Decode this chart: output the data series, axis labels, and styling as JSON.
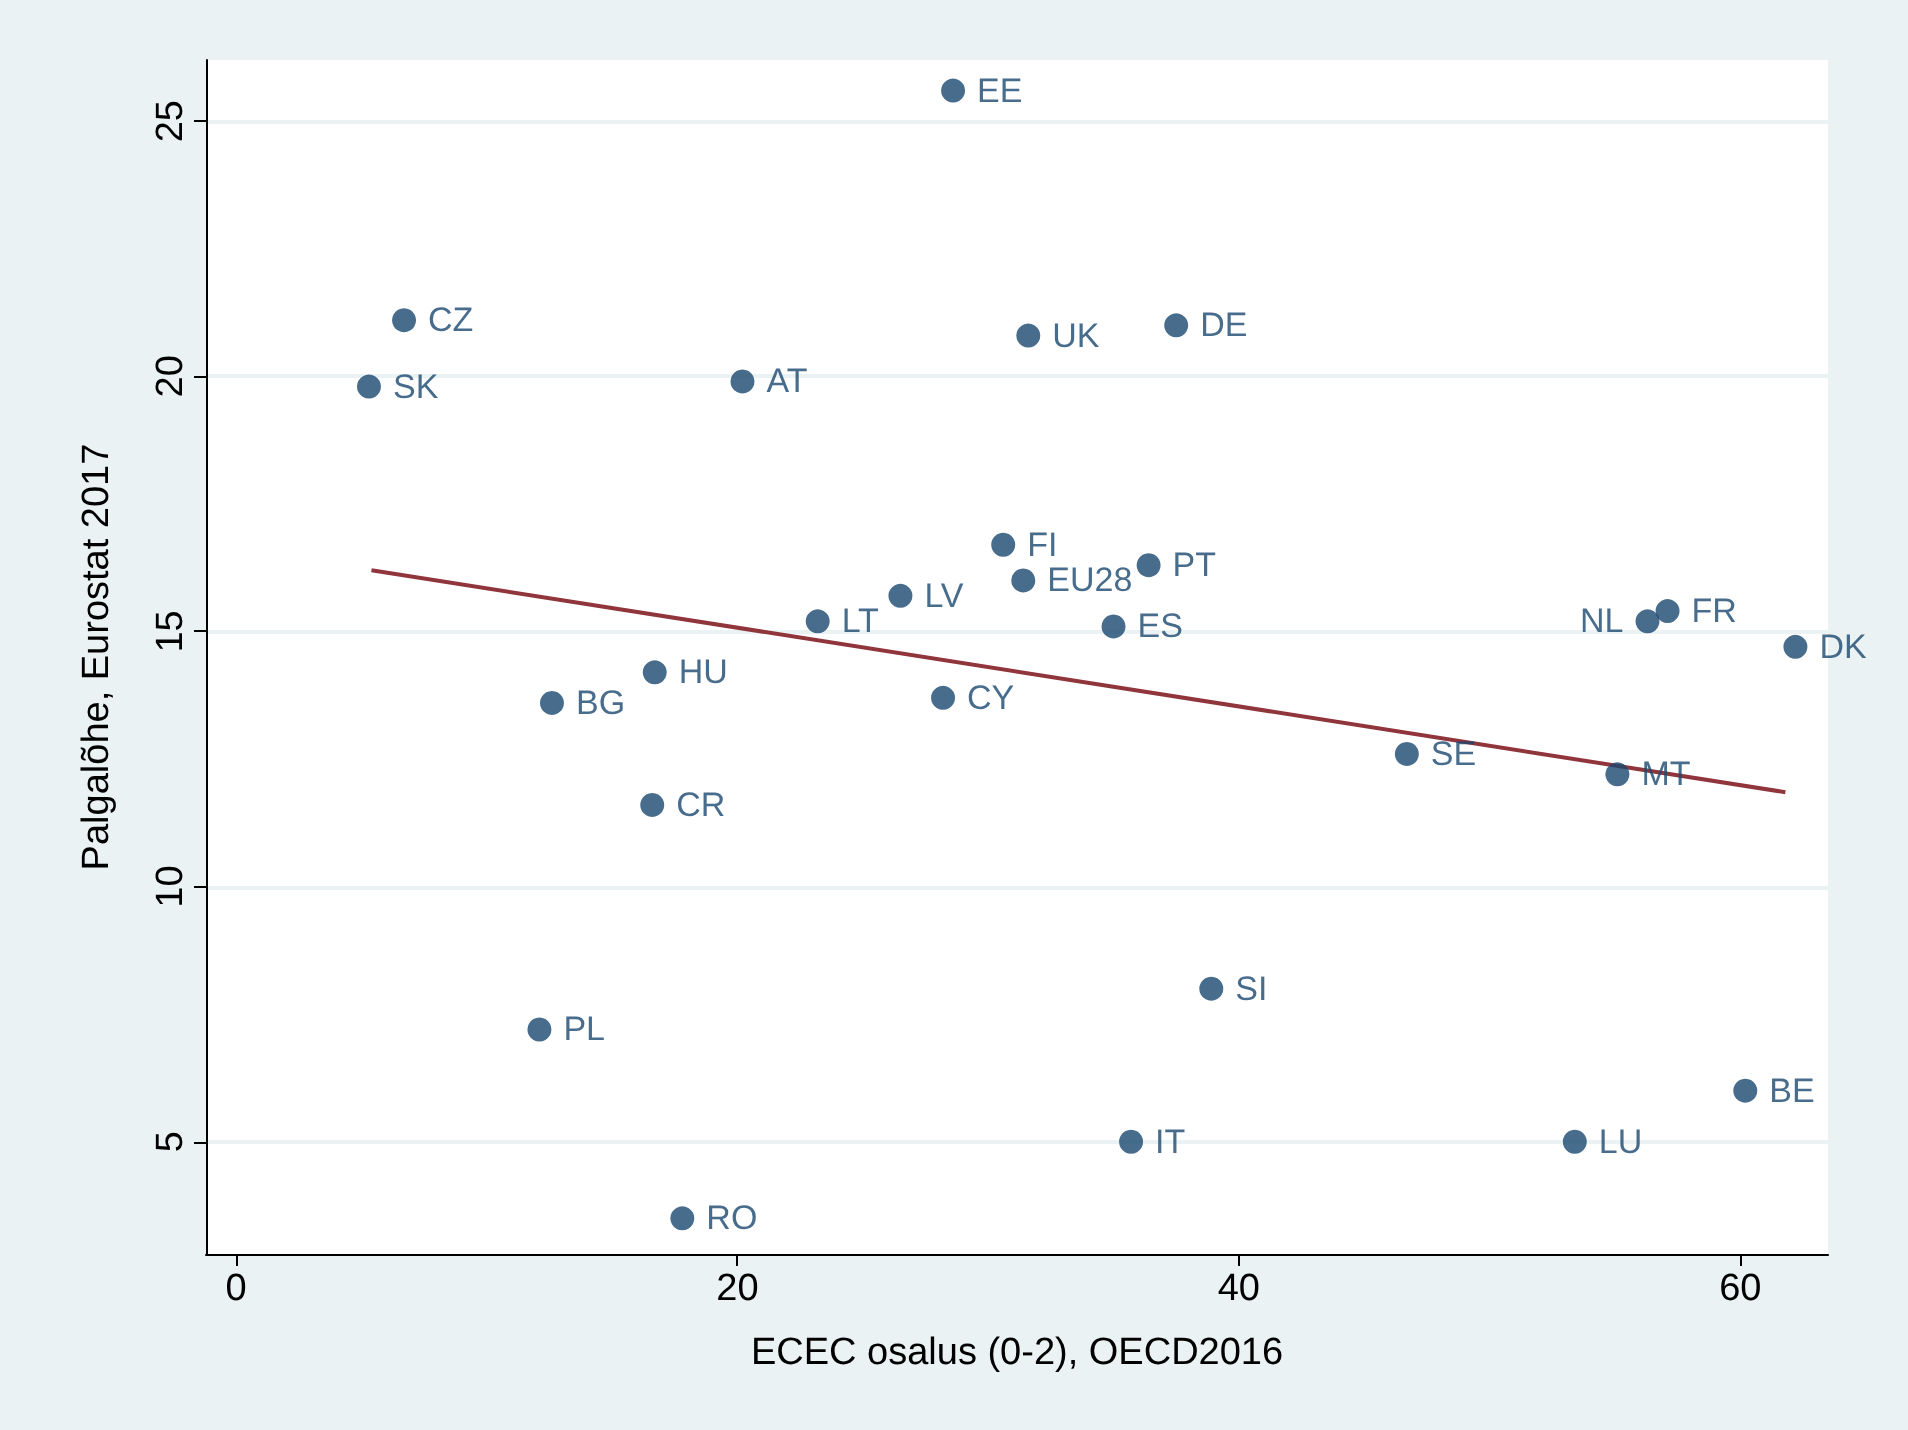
{
  "chart_data": {
    "type": "scatter",
    "xlabel": "ECEC osalus (0-2), OECD2016",
    "ylabel": "Palgalõhe, Eurostat 2017",
    "xlim": [
      -1.2,
      63.5
    ],
    "xticks": [
      0,
      20,
      40,
      60
    ],
    "ylim": [
      2.8,
      26.2
    ],
    "yticks": [
      5,
      10,
      15,
      20,
      25
    ],
    "grid": "y",
    "marker": "circle",
    "series": [
      {
        "color": "#1a476f",
        "x": [
          28.6,
          6.7,
          5.3,
          20.2,
          31.6,
          37.5,
          30.6,
          36.4,
          31.4,
          26.5,
          23.2,
          35.0,
          57.1,
          56.3,
          62.2,
          16.7,
          12.6,
          28.2,
          46.7,
          55.1,
          16.6,
          38.9,
          12.1,
          35.7,
          53.4,
          60.2,
          17.8
        ],
        "values": [
          25.6,
          21.1,
          19.8,
          19.9,
          20.8,
          21.0,
          16.7,
          16.3,
          16.0,
          15.7,
          15.2,
          15.1,
          15.4,
          15.2,
          14.7,
          14.2,
          13.6,
          13.7,
          12.6,
          12.2,
          11.6,
          8.0,
          7.2,
          5.0,
          5.0,
          6.0,
          3.5
        ],
        "value_labels": [
          "EE",
          "CZ",
          "SK",
          "AT",
          "UK",
          "DE",
          "FI",
          "PT",
          "EU28",
          "LV",
          "LT",
          "ES",
          "FR",
          "NL",
          "DK",
          "HU",
          "BG",
          "CY",
          "SE",
          "MT",
          "CR",
          "SI",
          "PL",
          "IT",
          "LU",
          "BE",
          "RO"
        ]
      },
      {
        "type": "line",
        "marker": "none",
        "color": "#90353b",
        "x": [
          5.4,
          61.8
        ],
        "values": [
          16.2,
          11.85
        ]
      }
    ]
  }
}
